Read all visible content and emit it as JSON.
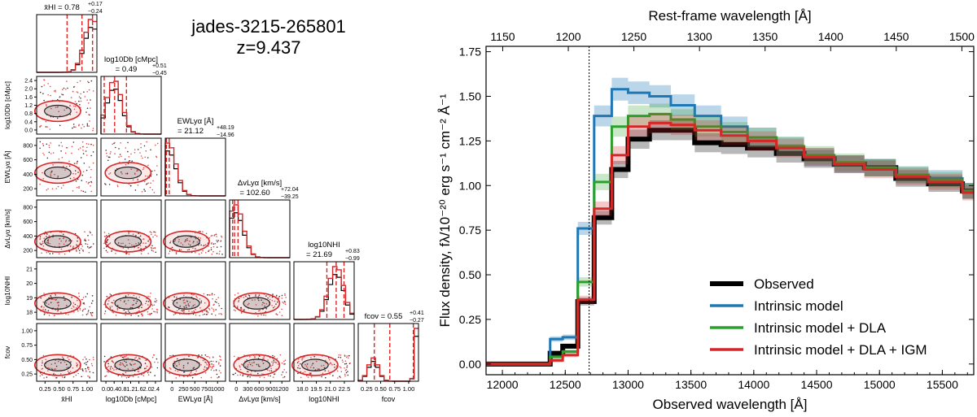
{
  "corner": {
    "object_name": "jades-3215-265801",
    "redshift": "z=9.437",
    "parameters": [
      {
        "axis_label": "x̄HI",
        "summary": "x̄HI = 0.78",
        "plus": "+0.17",
        "minus": "−0.24",
        "ticks": [
          "0.25",
          "0.50",
          "0.75",
          "1.00"
        ],
        "quantiles": [
          0.54,
          0.78,
          0.95
        ]
      },
      {
        "axis_label": "log10Db [cMpc]",
        "summary_line1": "log10Db [cMpc]",
        "summary": "= 0.49",
        "plus": "+0.51",
        "minus": "−0.45",
        "ticks": [
          "0.0",
          "0.4",
          "0.8",
          "1.2",
          "1.6",
          "2.0",
          "2.4"
        ],
        "quantiles": [
          0.04,
          0.49,
          1.0
        ]
      },
      {
        "axis_label": "EWLyα [Å]",
        "summary_line1": "EWLyα [Å]",
        "summary": "= 21.12",
        "plus": "+48.19",
        "minus": "−14.96",
        "ticks": [
          "0",
          "250",
          "500",
          "750",
          "1000"
        ],
        "quantiles": [
          6,
          21,
          69
        ]
      },
      {
        "axis_label": "ΔvLyα [km/s]",
        "summary_line1": "ΔvLyα [km/s]",
        "summary": "= 102.60",
        "plus": "+72.04",
        "minus": "−39.25",
        "ticks": [
          "0",
          "300",
          "600",
          "900",
          "1200"
        ],
        "quantiles": [
          63,
          103,
          175
        ]
      },
      {
        "axis_label": "log10NHI",
        "summary_line1": "log10NHI",
        "summary": "= 21.69",
        "plus": "+0.83",
        "minus": "−0.99",
        "ticks": [
          "18.0",
          "19.5",
          "21.0",
          "22.5"
        ],
        "quantiles": [
          20.7,
          21.69,
          22.52
        ]
      },
      {
        "axis_label": "fcov",
        "summary": "fcov = 0.55",
        "plus": "+0.41",
        "minus": "−0.27",
        "ticks": [
          "0.25",
          "0.50",
          "0.75",
          "1.00"
        ],
        "quantiles": [
          0.28,
          0.55,
          0.96
        ]
      }
    ],
    "y_ticks": {
      "log10Db": [
        "0.0",
        "0.4",
        "0.8",
        "1.2",
        "1.6",
        "2.0",
        "2.4"
      ],
      "EWLya": [
        "200",
        "400",
        "600",
        "800"
      ],
      "dvLya": [
        "200",
        "400",
        "600",
        "800"
      ],
      "log10NHI": [
        "18",
        "19",
        "20",
        "21"
      ],
      "fcov": [
        "0.25",
        "0.50",
        "0.75",
        "1.00"
      ]
    }
  },
  "chart_data": {
    "type": "line",
    "xlabel": "Observed wavelength [Å]",
    "x2label": "Rest-frame wavelength [Å]",
    "ylabel": "Flux density, fλ/10⁻²⁰ erg s⁻¹ cm⁻² Å⁻¹",
    "xlim": [
      11870,
      15750
    ],
    "ylim": [
      -0.06,
      1.78
    ],
    "xticks": [
      12000,
      12500,
      13000,
      13500,
      14000,
      14500,
      15000,
      15500
    ],
    "yticks": [
      0.0,
      0.25,
      0.5,
      0.75,
      1.0,
      1.25,
      1.5,
      1.75
    ],
    "ytick_labels": [
      "0.00",
      "0.25",
      "0.50",
      "0.75",
      "1.00",
      "1.25",
      "1.50",
      "1.75"
    ],
    "x2ticks": [
      1150,
      1200,
      1250,
      1300,
      1350,
      1400,
      1450,
      1500
    ],
    "redshift": 9.437,
    "lya_line_x": 12690,
    "bin_edges": [
      11870,
      12000,
      12050,
      12190,
      12380,
      12480,
      12600,
      12730,
      12870,
      13000,
      13170,
      13340,
      13530,
      13740,
      13950,
      14180,
      14400,
      14640,
      14880,
      15130,
      15390,
      15660,
      15750
    ],
    "series": [
      {
        "name": "Observed",
        "color": "#000000",
        "values": [
          0.0,
          0.0,
          0.0,
          0.0,
          0.06,
          0.1,
          0.35,
          0.82,
          1.09,
          1.26,
          1.31,
          1.31,
          1.24,
          1.23,
          1.21,
          1.18,
          1.15,
          1.12,
          1.1,
          1.04,
          1.01,
          0.97
        ]
      },
      {
        "name": "Intrinsic model",
        "color": "#1f77b4",
        "values": [
          0.0,
          0.0,
          0.0,
          0.0,
          0.14,
          0.15,
          0.76,
          1.39,
          1.54,
          1.52,
          1.5,
          1.45,
          1.39,
          1.33,
          1.27,
          1.22,
          1.16,
          1.12,
          1.1,
          1.06,
          1.04,
          0.97
        ]
      },
      {
        "name": "Intrinsic model + DLA",
        "color": "#2ca02c",
        "values": [
          0.0,
          0.0,
          0.0,
          0.0,
          0.04,
          0.07,
          0.46,
          1.02,
          1.33,
          1.39,
          1.4,
          1.37,
          1.33,
          1.3,
          1.27,
          1.22,
          1.17,
          1.13,
          1.1,
          1.06,
          1.03,
          0.97
        ]
      },
      {
        "name": "Intrinsic model + DLA + IGM",
        "color": "#d62728",
        "values": [
          0.0,
          0.0,
          0.0,
          0.0,
          0.02,
          0.05,
          0.36,
          0.87,
          1.17,
          1.33,
          1.35,
          1.34,
          1.31,
          1.28,
          1.25,
          1.21,
          1.16,
          1.12,
          1.09,
          1.05,
          1.02,
          0.96
        ]
      }
    ],
    "legend_position": "lower-right"
  }
}
